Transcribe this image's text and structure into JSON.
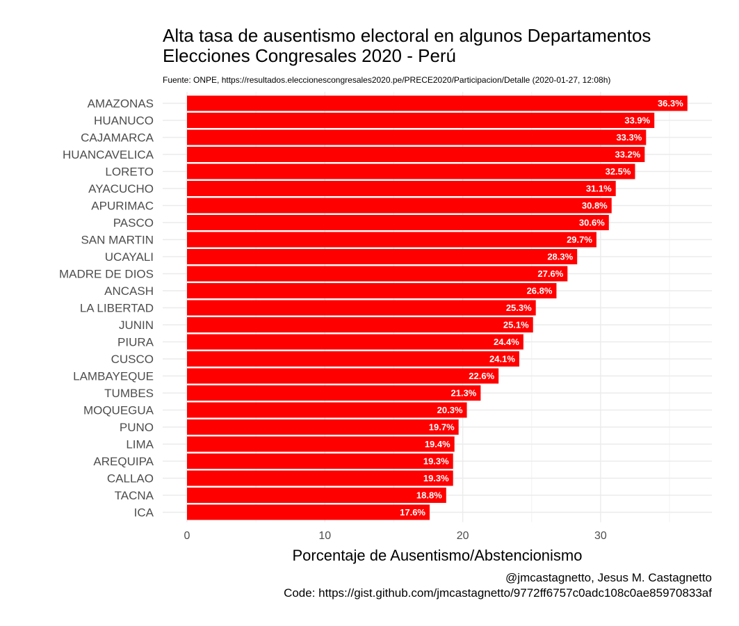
{
  "chart_data": {
    "type": "bar",
    "orientation": "horizontal",
    "title": "Alta tasa de ausentismo electoral en algunos Departamentos",
    "title_line2": "Elecciones Congresales 2020 - Perú",
    "subtitle": "Fuente: ONPE, https://resultados.eleccionescongresales2020.pe/PRECE2020/Participacion/Detalle (2020-01-27, 12:08h)",
    "xlabel": "Porcentaje de Ausentismo/Abstencionismo",
    "ylabel": "",
    "xlim": [
      0,
      38
    ],
    "xticks": [
      0,
      10,
      20,
      30
    ],
    "grid": true,
    "bar_color": "#ff0000",
    "categories": [
      "AMAZONAS",
      "HUANUCO",
      "CAJAMARCA",
      "HUANCAVELICA",
      "LORETO",
      "AYACUCHO",
      "APURIMAC",
      "PASCO",
      "SAN MARTIN",
      "UCAYALI",
      "MADRE DE DIOS",
      "ANCASH",
      "LA LIBERTAD",
      "JUNIN",
      "PIURA",
      "CUSCO",
      "LAMBAYEQUE",
      "TUMBES",
      "MOQUEGUA",
      "PUNO",
      "LIMA",
      "AREQUIPA",
      "CALLAO",
      "TACNA",
      "ICA"
    ],
    "values": [
      36.3,
      33.9,
      33.3,
      33.2,
      32.5,
      31.1,
      30.8,
      30.6,
      29.7,
      28.3,
      27.6,
      26.8,
      25.3,
      25.1,
      24.4,
      24.1,
      22.6,
      21.3,
      20.3,
      19.7,
      19.4,
      19.3,
      19.3,
      18.8,
      17.6
    ],
    "value_labels": [
      "36.3%",
      "33.9%",
      "33.3%",
      "33.2%",
      "32.5%",
      "31.1%",
      "30.8%",
      "30.6%",
      "29.7%",
      "28.3%",
      "27.6%",
      "26.8%",
      "25.3%",
      "25.1%",
      "24.4%",
      "24.1%",
      "22.6%",
      "21.3%",
      "20.3%",
      "19.7%",
      "19.4%",
      "19.3%",
      "19.3%",
      "18.8%",
      "17.6%"
    ],
    "caption": [
      "@jmcastagnetto, Jesus M. Castagnetto",
      "Code: https://gist.github.com/jmcastagnetto/9772ff6757c0adc108c0ae85970833af"
    ]
  }
}
